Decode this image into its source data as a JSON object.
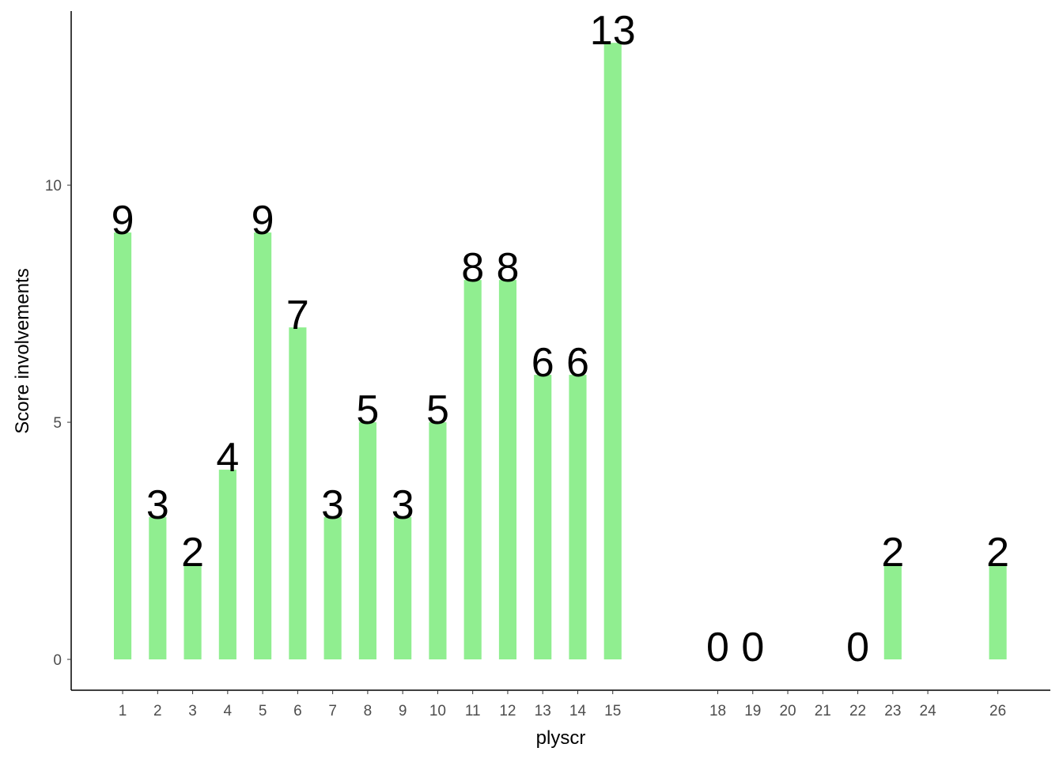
{
  "chart_data": {
    "type": "bar",
    "x_label": "plyscr",
    "y_label": "Score involvements",
    "x": [
      1,
      2,
      3,
      4,
      5,
      6,
      7,
      8,
      9,
      10,
      11,
      12,
      13,
      14,
      15,
      18,
      19,
      22,
      23,
      26
    ],
    "values": [
      9,
      3,
      2,
      4,
      9,
      7,
      3,
      5,
      3,
      5,
      8,
      8,
      6,
      6,
      13,
      0,
      0,
      0,
      2,
      2
    ],
    "color": "#90ee90",
    "xlim": [
      -0.47,
      27.5
    ],
    "xticks": [
      1,
      2,
      3,
      4,
      5,
      6,
      7,
      8,
      9,
      10,
      11,
      12,
      13,
      14,
      15,
      18,
      19,
      20,
      21,
      22,
      23,
      24,
      26
    ],
    "ylim": [
      -0.65,
      13.67
    ],
    "yticks": [
      0,
      5,
      10
    ],
    "grid": false
  }
}
